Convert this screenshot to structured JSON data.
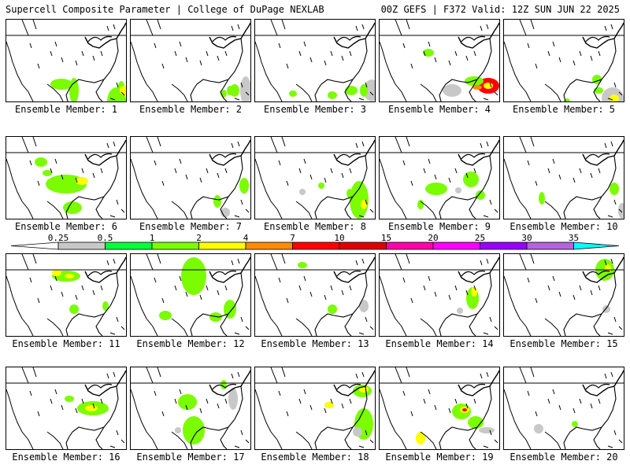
{
  "header": {
    "left": "Supercell Composite Parameter | College of DuPage NEXLAB",
    "right": "00Z GEFS | F372 Valid: 12Z SUN JUN 22 2025"
  },
  "members": [
    {
      "label": "Ensemble Member: 1",
      "blobs": [
        [
          70,
          82,
          14,
          7,
          "#7cfc00"
        ],
        [
          140,
          104,
          12,
          18,
          "#7cfc00"
        ],
        [
          86,
          112,
          6,
          16,
          "#7cfc00"
        ],
        [
          146,
          130,
          5,
          12,
          "#7cfc00"
        ],
        [
          150,
          108,
          6,
          6,
          "#ffff00"
        ]
      ]
    },
    {
      "label": "Ensemble Member: 2",
      "blobs": [
        [
          146,
          120,
          7,
          18,
          "#c8c8c8"
        ],
        [
          132,
          108,
          6,
          8,
          "#7cfc00"
        ],
        [
          126,
          118,
          4,
          6,
          "#7cfc00"
        ],
        [
          118,
          94,
          4,
          5,
          "#7cfc00"
        ]
      ]
    },
    {
      "label": "Ensemble Member: 3",
      "blobs": [
        [
          148,
          120,
          10,
          14,
          "#c8c8c8"
        ],
        [
          138,
          110,
          5,
          8,
          "#7cfc00"
        ],
        [
          122,
          110,
          8,
          6,
          "#7cfc00"
        ],
        [
          98,
          96,
          6,
          5,
          "#7cfc00"
        ],
        [
          48,
          94,
          5,
          4,
          "#7cfc00"
        ]
      ]
    },
    {
      "label": "Ensemble Member: 4",
      "blobs": [
        [
          138,
          84,
          14,
          10,
          "#ff0000"
        ],
        [
          138,
          84,
          6,
          4,
          "#ffff00"
        ],
        [
          120,
          78,
          12,
          6,
          "#7cfc00"
        ],
        [
          124,
          86,
          6,
          3,
          "#ff8c00"
        ],
        [
          62,
          42,
          7,
          5,
          "#7cfc00"
        ],
        [
          92,
          110,
          12,
          8,
          "#c8c8c8"
        ]
      ]
    },
    {
      "label": "Ensemble Member: 5",
      "blobs": [
        [
          138,
          100,
          14,
          14,
          "#c8c8c8"
        ],
        [
          140,
          100,
          6,
          5,
          "#ffff00"
        ],
        [
          118,
          76,
          6,
          6,
          "#7cfc00"
        ],
        [
          80,
          104,
          4,
          4,
          "#7cfc00"
        ],
        [
          120,
          124,
          6,
          4,
          "#7cfc00"
        ]
      ]
    },
    {
      "label": "Ensemble Member: 6",
      "blobs": [
        [
          44,
          32,
          8,
          6,
          "#7cfc00"
        ],
        [
          52,
          46,
          6,
          4,
          "#7cfc00"
        ],
        [
          76,
          60,
          26,
          12,
          "#7cfc00"
        ],
        [
          96,
          56,
          8,
          5,
          "#ffff00"
        ],
        [
          84,
          270,
          12,
          8,
          "#7cfc00"
        ]
      ]
    },
    {
      "label": "Ensemble Member: 7",
      "blobs": [
        [
          110,
          82,
          5,
          8,
          "#7cfc00"
        ],
        [
          120,
          96,
          6,
          6,
          "#c8c8c8"
        ],
        [
          144,
          62,
          6,
          10,
          "#7cfc00"
        ]
      ]
    },
    {
      "label": "Ensemble Member: 8",
      "blobs": [
        [
          132,
          80,
          12,
          24,
          "#7cfc00"
        ],
        [
          138,
          86,
          4,
          6,
          "#ffff00"
        ],
        [
          120,
          72,
          4,
          6,
          "#7cfc00"
        ],
        [
          84,
          62,
          4,
          4,
          "#7cfc00"
        ],
        [
          60,
          70,
          4,
          4,
          "#c8c8c8"
        ]
      ]
    },
    {
      "label": "Ensemble Member: 9",
      "blobs": [
        [
          72,
          66,
          14,
          8,
          "#7cfc00"
        ],
        [
          116,
          54,
          10,
          10,
          "#7cfc00"
        ],
        [
          52,
          86,
          4,
          6,
          "#7cfc00"
        ],
        [
          128,
          74,
          6,
          6,
          "#7cfc00"
        ],
        [
          100,
          68,
          4,
          4,
          "#c8c8c8"
        ]
      ]
    },
    {
      "label": "Ensemble Member: 10",
      "blobs": [
        [
          48,
          78,
          4,
          8,
          "#7cfc00"
        ],
        [
          140,
          66,
          6,
          8,
          "#7cfc00"
        ],
        [
          150,
          94,
          5,
          10,
          "#c8c8c8"
        ]
      ]
    },
    {
      "label": "Ensemble Member: 11",
      "blobs": [
        [
          76,
          28,
          18,
          7,
          "#7cfc00"
        ],
        [
          64,
          24,
          6,
          4,
          "#ffff00"
        ],
        [
          80,
          28,
          6,
          3,
          "#ffff00"
        ],
        [
          86,
          70,
          6,
          6,
          "#7cfc00"
        ],
        [
          126,
          66,
          4,
          6,
          "#7cfc00"
        ]
      ]
    },
    {
      "label": "Ensemble Member: 12",
      "blobs": [
        [
          80,
          28,
          16,
          24,
          "#7cfc00"
        ],
        [
          44,
          78,
          8,
          6,
          "#7cfc00"
        ],
        [
          126,
          70,
          8,
          12,
          "#7cfc00"
        ],
        [
          108,
          80,
          8,
          6,
          "#7cfc00"
        ]
      ]
    },
    {
      "label": "Ensemble Member: 13",
      "blobs": [
        [
          60,
          14,
          6,
          4,
          "#7cfc00"
        ],
        [
          98,
          70,
          6,
          6,
          "#7cfc00"
        ],
        [
          138,
          66,
          6,
          8,
          "#c8c8c8"
        ]
      ]
    },
    {
      "label": "Ensemble Member: 14",
      "blobs": [
        [
          118,
          56,
          8,
          14,
          "#7cfc00"
        ],
        [
          120,
          48,
          4,
          6,
          "#ffff00"
        ],
        [
          102,
          72,
          4,
          4,
          "#c8c8c8"
        ]
      ]
    },
    {
      "label": "Ensemble Member: 15",
      "blobs": [
        [
          128,
          20,
          12,
          14,
          "#7cfc00"
        ],
        [
          132,
          18,
          4,
          5,
          "#ffff00"
        ],
        [
          130,
          70,
          5,
          5,
          "#c8c8c8"
        ]
      ]
    },
    {
      "label": "Ensemble Member: 16",
      "blobs": [
        [
          110,
          52,
          20,
          9,
          "#7cfc00"
        ],
        [
          108,
          52,
          8,
          4,
          "#ffff00"
        ],
        [
          80,
          40,
          6,
          4,
          "#7cfc00"
        ]
      ]
    },
    {
      "label": "Ensemble Member: 17",
      "blobs": [
        [
          72,
          44,
          12,
          10,
          "#7cfc00"
        ],
        [
          80,
          80,
          14,
          18,
          "#7cfc00"
        ],
        [
          130,
          40,
          6,
          14,
          "#c8c8c8"
        ],
        [
          118,
          22,
          4,
          6,
          "#7cfc00"
        ],
        [
          60,
          80,
          4,
          4,
          "#c8c8c8"
        ]
      ]
    },
    {
      "label": "Ensemble Member: 18",
      "blobs": [
        [
          136,
          30,
          12,
          8,
          "#7cfc00"
        ],
        [
          138,
          28,
          6,
          4,
          "#ffff00"
        ],
        [
          94,
          48,
          6,
          4,
          "#ffff00"
        ],
        [
          138,
          72,
          12,
          20,
          "#7cfc00"
        ],
        [
          130,
          82,
          6,
          6,
          "#c8c8c8"
        ]
      ]
    },
    {
      "label": "Ensemble Member: 19",
      "blobs": [
        [
          104,
          56,
          12,
          10,
          "#7cfc00"
        ],
        [
          108,
          54,
          6,
          4,
          "#ffff00"
        ],
        [
          108,
          54,
          3,
          2,
          "#ff0000"
        ],
        [
          52,
          90,
          6,
          8,
          "#ffff00"
        ],
        [
          122,
          70,
          10,
          8,
          "#7cfc00"
        ],
        [
          136,
          80,
          10,
          4,
          "#c8c8c8"
        ]
      ]
    },
    {
      "label": "Ensemble Member: 20",
      "blobs": [
        [
          44,
          78,
          6,
          6,
          "#c8c8c8"
        ],
        [
          90,
          72,
          4,
          4,
          "#7cfc00"
        ]
      ]
    }
  ],
  "colorbar": {
    "labels": [
      "0.25",
      "0.5",
      "1",
      "2",
      "4",
      "7",
      "10",
      "15",
      "20",
      "25",
      "30",
      "35"
    ],
    "colors": [
      "#c8c8c8",
      "#00ff3c",
      "#7cfc00",
      "#ffff00",
      "#ff8c00",
      "#ff0000",
      "#dc0000",
      "#ff00aa",
      "#ff00ff",
      "#9600ff",
      "#b464dc",
      "#00ffff"
    ]
  },
  "style": {
    "coast": "#000000",
    "border": "#000000",
    "grey": "#c8c8c8"
  }
}
